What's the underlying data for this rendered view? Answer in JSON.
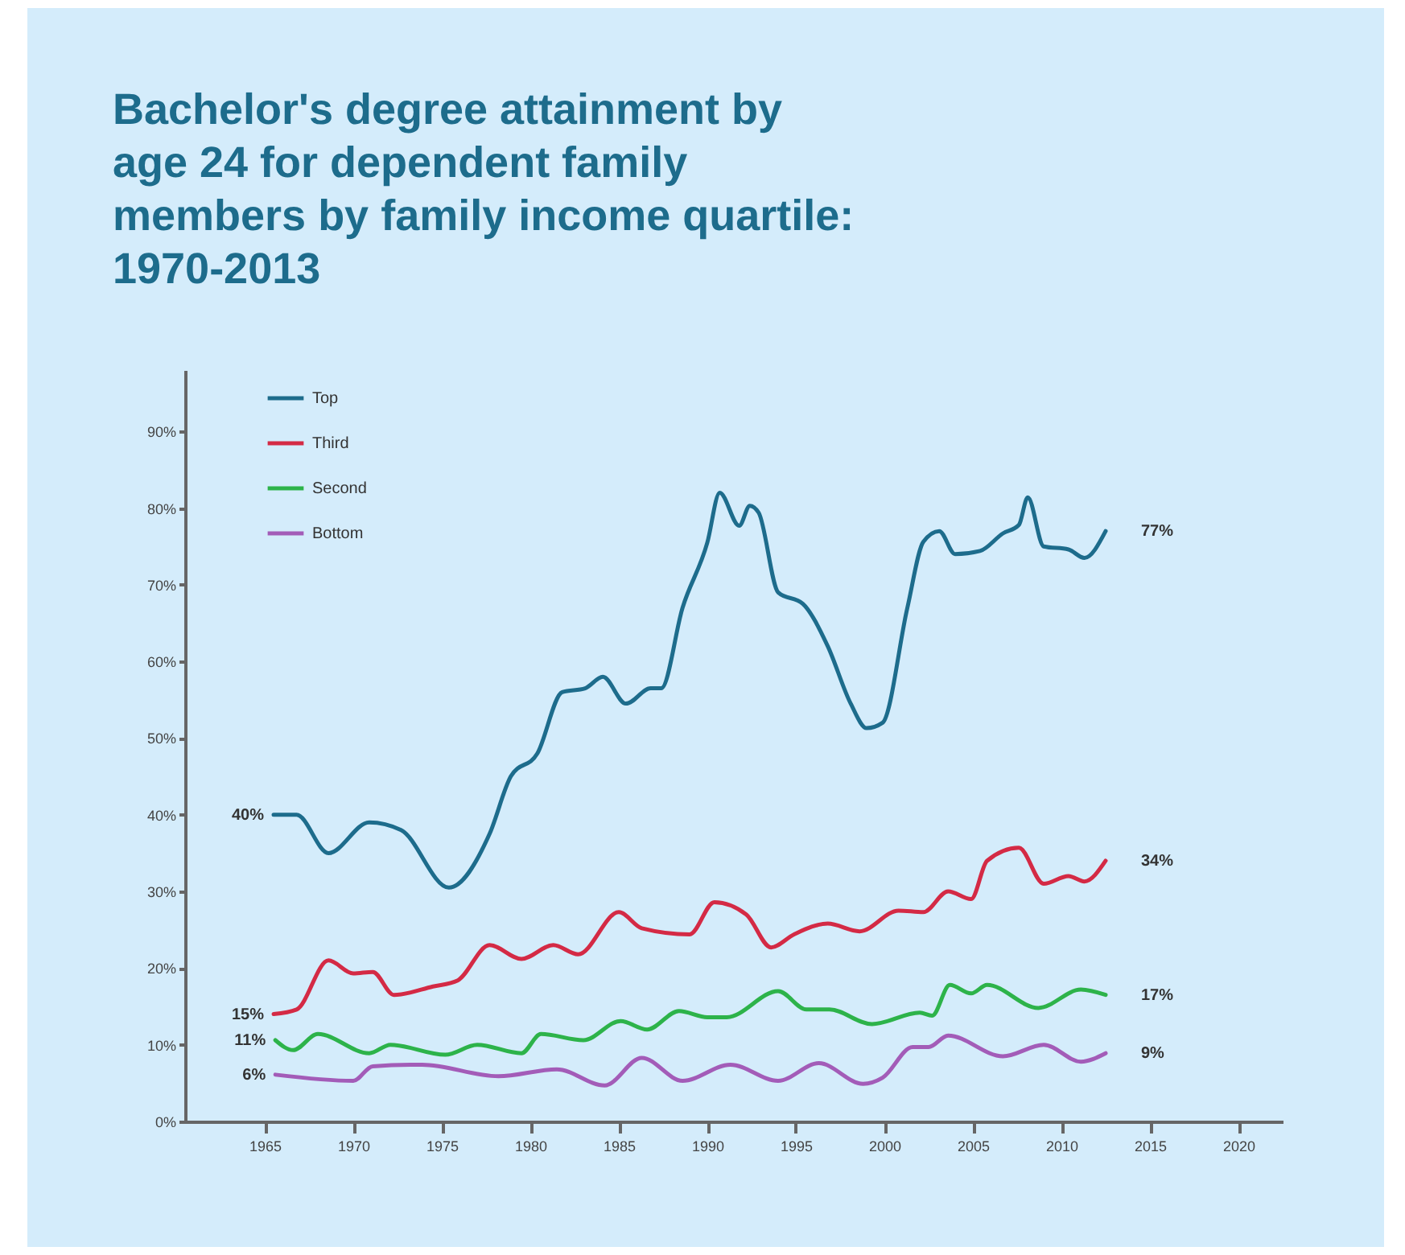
{
  "chart_data": {
    "type": "line",
    "title": "Bachelor's degree attainment by age 24 for dependent family members by family income quartile: 1970-2013",
    "xlim": [
      1960.5,
      2022.5
    ],
    "xticks": [
      1965,
      1970,
      1975,
      1980,
      1985,
      1990,
      1995,
      2000,
      2005,
      2010,
      2015,
      2020
    ],
    "ylim": [
      0,
      98
    ],
    "yticks": [
      {
        "value": 0,
        "label": "0%"
      },
      {
        "value": 10,
        "label": "10%"
      },
      {
        "value": 20,
        "label": "20%"
      },
      {
        "value": 30,
        "label": "30%"
      },
      {
        "value": 40,
        "label": "40%"
      },
      {
        "value": 50,
        "label": "50%"
      },
      {
        "value": 60,
        "label": "60%"
      },
      {
        "value": 70,
        "label": "70%"
      },
      {
        "value": 80,
        "label": "80%"
      },
      {
        "value": 90,
        "label": "90%"
      }
    ],
    "grid": false,
    "legend": "top left",
    "line_style": "solid",
    "marker": "none",
    "series": [
      {
        "name": "Top",
        "color": "#1d6c8c",
        "x": [
          1965.5,
          1966.8,
          1968.6,
          1970.9,
          1972.7,
          1975.4,
          1977.7,
          1978.9,
          1980.4,
          1981.8,
          1983.1,
          1984.1,
          1985.4,
          1986.8,
          1987.4,
          1988.6,
          1990.0,
          1990.7,
          1991.8,
          1992.4,
          1992.9,
          1994.0,
          1995.4,
          1996.8,
          1998.1,
          1999.0,
          1999.9,
          2001.3,
          2002.2,
          2003.1,
          2004.0,
          2005.4,
          2006.7,
          2007.6,
          2008.1,
          2009.0,
          2010.4,
          2011.3,
          2012.5
        ],
        "values": [
          40,
          40,
          35,
          39,
          38,
          30.5,
          37.5,
          45,
          48,
          56,
          56.5,
          58,
          54.5,
          56.5,
          56.5,
          67,
          75.5,
          82,
          77.7,
          80.3,
          79.4,
          69,
          67.5,
          62,
          54.5,
          51.3,
          52,
          67,
          75.6,
          77,
          74,
          74.4,
          76.7,
          77.8,
          81.4,
          75,
          74.6,
          73.5,
          77
        ]
      },
      {
        "name": "Third",
        "color": "#d42a45",
        "x": [
          1965.5,
          1966.8,
          1968.6,
          1970.0,
          1971.1,
          1972.3,
          1974.5,
          1975.9,
          1977.7,
          1979.5,
          1981.3,
          1982.7,
          1985.0,
          1986.3,
          1989.0,
          1990.4,
          1992.2,
          1993.6,
          1994.9,
          1996.8,
          1998.6,
          2000.8,
          2002.2,
          2003.6,
          2004.9,
          2005.8,
          2007.6,
          2009.0,
          2010.4,
          2011.3,
          2012.5
        ],
        "values": [
          14,
          14.6,
          21,
          19.3,
          19.5,
          16.5,
          17.6,
          18.4,
          23,
          21.2,
          23,
          21.8,
          27.3,
          25.2,
          24.4,
          28.6,
          27,
          22.7,
          24.4,
          25.8,
          24.8,
          27.5,
          27.3,
          30,
          29,
          34,
          35.7,
          31,
          32,
          31.3,
          34
        ]
      },
      {
        "name": "Second",
        "color": "#2db34a",
        "x": [
          1965.6,
          1966.6,
          1968.0,
          1970.9,
          1972.1,
          1975.2,
          1977.0,
          1979.5,
          1980.6,
          1983.0,
          1985.1,
          1986.6,
          1988.4,
          1990.0,
          1991.1,
          1994.0,
          1995.6,
          1996.9,
          1999.3,
          2002.0,
          2002.7,
          2003.7,
          2004.9,
          2005.8,
          2008.7,
          2011.1,
          2012.5
        ],
        "values": [
          10.6,
          9.3,
          11.4,
          8.9,
          10,
          8.7,
          10,
          8.9,
          11.4,
          10.6,
          13.1,
          12,
          14.4,
          13.6,
          13.6,
          17,
          14.6,
          14.6,
          12.7,
          14.2,
          13.8,
          17.8,
          16.7,
          17.8,
          14.8,
          17.2,
          16.5
        ]
      },
      {
        "name": "Bottom",
        "color": "#a35cb8",
        "x": [
          1965.6,
          1970.0,
          1971.1,
          1973.9,
          1978.2,
          1981.5,
          1984.2,
          1986.3,
          1988.6,
          1991.3,
          1994.0,
          1996.3,
          1998.8,
          1999.9,
          2001.6,
          2002.5,
          2003.6,
          2006.7,
          2009.0,
          2011.1,
          2012.5
        ],
        "values": [
          6.1,
          5.3,
          7.2,
          7.4,
          5.9,
          6.8,
          4.7,
          8.3,
          5.3,
          7.4,
          5.3,
          7.6,
          4.9,
          5.7,
          9.7,
          9.7,
          11.2,
          8.5,
          10,
          7.8,
          8.9
        ]
      }
    ],
    "annotations": [
      {
        "text": "40%",
        "x": 1965.5,
        "y": 40
      },
      {
        "text": "15%",
        "x": 1965.5,
        "y": 14
      },
      {
        "text": "11%",
        "x": 1965.6,
        "y": 10.6
      },
      {
        "text": "6%",
        "x": 1965.6,
        "y": 6.1
      },
      {
        "text": "77%",
        "x": 2012.5,
        "y": 77
      },
      {
        "text": "34%",
        "x": 2012.5,
        "y": 34
      },
      {
        "text": "17%",
        "x": 2012.5,
        "y": 16.5
      },
      {
        "text": "9%",
        "x": 2012.5,
        "y": 8.9
      }
    ]
  }
}
